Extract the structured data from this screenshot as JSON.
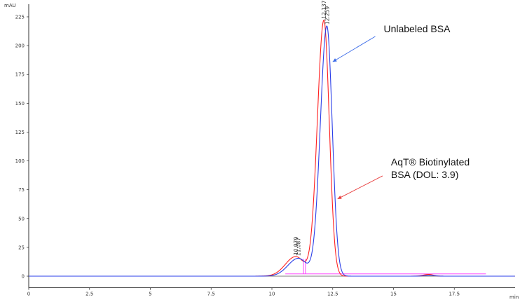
{
  "chart_data": {
    "type": "line",
    "title": "",
    "xlabel": "",
    "ylabel": "",
    "x_unit": "min",
    "y_unit": "mAU",
    "xlim": [
      0,
      20
    ],
    "ylim": [
      -10,
      230
    ],
    "x_ticks": [
      0,
      2.5,
      5,
      7.5,
      10,
      12.5,
      15,
      17.5
    ],
    "y_ticks": [
      0,
      25,
      50,
      75,
      100,
      125,
      150,
      175,
      200,
      225
    ],
    "grid": false,
    "legend": "none",
    "series": [
      {
        "color": "#ff2020",
        "peaks": [
          {
            "x": 10.979,
            "y": 17,
            "width": 0.38
          },
          {
            "x": 12.137,
            "y": 222,
            "width": 0.24
          },
          {
            "x": 16.45,
            "y": 1.5,
            "width": 0.2
          }
        ]
      },
      {
        "color": "#2a3ee8",
        "peaks": [
          {
            "x": 11.087,
            "y": 15.5,
            "width": 0.38
          },
          {
            "x": 12.259,
            "y": 217,
            "width": 0.24
          },
          {
            "x": 16.5,
            "y": 0.8,
            "width": 0.2
          }
        ]
      }
    ],
    "peak_labels": [
      {
        "x": 10.979,
        "text": "10.979"
      },
      {
        "x": 11.087,
        "text": "11.087"
      },
      {
        "x": 12.137,
        "text": "12.137"
      },
      {
        "x": 12.259,
        "text": "12.259"
      }
    ],
    "annotations": [
      {
        "lines": [
          "Unlabeled BSA"
        ],
        "arrow_color": "#3a6ae8",
        "arrow_tip": {
          "x": 12.5,
          "y": 186
        },
        "arrow_tail": {
          "x": 14.25,
          "y": 208
        }
      },
      {
        "lines": [
          "AqT® Biotinylated",
          "BSA (DOL: 3.9)"
        ],
        "arrow_color": "#e83a3a",
        "arrow_tip": {
          "x": 12.7,
          "y": 67
        },
        "arrow_tail": {
          "x": 14.55,
          "y": 87
        }
      }
    ],
    "integration_markers": {
      "color": "#ff44ff",
      "x": [
        11.3,
        11.38
      ],
      "baseline": {
        "x": [
          10.55,
          18.8
        ],
        "y": 2
      }
    }
  }
}
